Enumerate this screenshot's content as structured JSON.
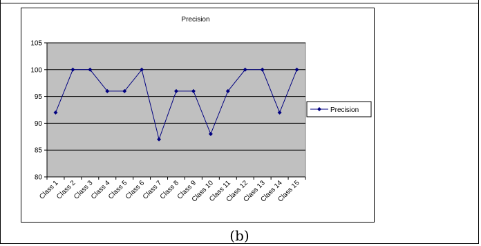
{
  "caption": "(b)",
  "chart_data": {
    "type": "line",
    "title": "Precision",
    "xlabel": "",
    "ylabel": "",
    "categories": [
      "Class 1",
      "Class 2",
      "Class 3",
      "Class 4",
      "Class 5",
      "Class 6",
      "Class 7",
      "Class 8",
      "Class 9",
      "Class 10",
      "Class 11",
      "Class 12",
      "Class 13",
      "Class 14",
      "Class 15"
    ],
    "series": [
      {
        "name": "Precision",
        "values": [
          92,
          100,
          100,
          96,
          96,
          100,
          87,
          96,
          96,
          88,
          96,
          100,
          100,
          92,
          100
        ]
      }
    ],
    "ylim": [
      80,
      105
    ],
    "yticks": [
      80,
      85,
      90,
      95,
      100,
      105
    ],
    "grid": true,
    "legend": "right",
    "colors": {
      "plot_bg": "#c0c0c0",
      "series": "#000080",
      "grid": "#000000"
    }
  }
}
